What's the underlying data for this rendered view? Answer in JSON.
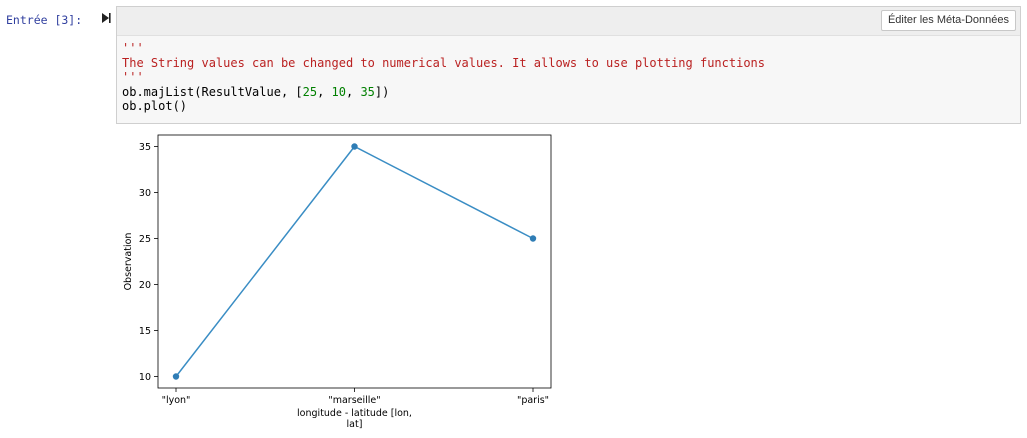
{
  "cell": {
    "prompt": "Entrée [3]:",
    "toolbar": {
      "edit_metadata_label": "Éditer les Méta-Données"
    },
    "code_lines": [
      {
        "text": "'''",
        "kind": "str"
      },
      {
        "text": "The String values can be changed to numerical values. It allows to use plotting functions",
        "kind": "str"
      },
      {
        "text": "'''",
        "kind": "str"
      },
      {
        "text": "",
        "kind": "gap"
      },
      {
        "text": "ob.majList(ResultValue, [25, 10, 35])",
        "kind": "code"
      },
      {
        "text": "ob.plot()",
        "kind": "code"
      }
    ]
  },
  "icons": {
    "run": "run-cell-icon"
  },
  "chart_data": {
    "type": "line",
    "categories": [
      "\"lyon\"",
      "\"marseille\"",
      "\"paris\""
    ],
    "values": [
      10,
      35,
      25
    ],
    "xlabel_lines": [
      "longitude - latitude [lon,",
      "lat]"
    ],
    "ylabel": "Observation",
    "yticks": [
      10,
      15,
      20,
      25,
      30,
      35
    ],
    "ylim": [
      8.75,
      36.25
    ],
    "grid": false,
    "line_color": "#3a8dc4",
    "marker_color": "#2f7db5"
  }
}
